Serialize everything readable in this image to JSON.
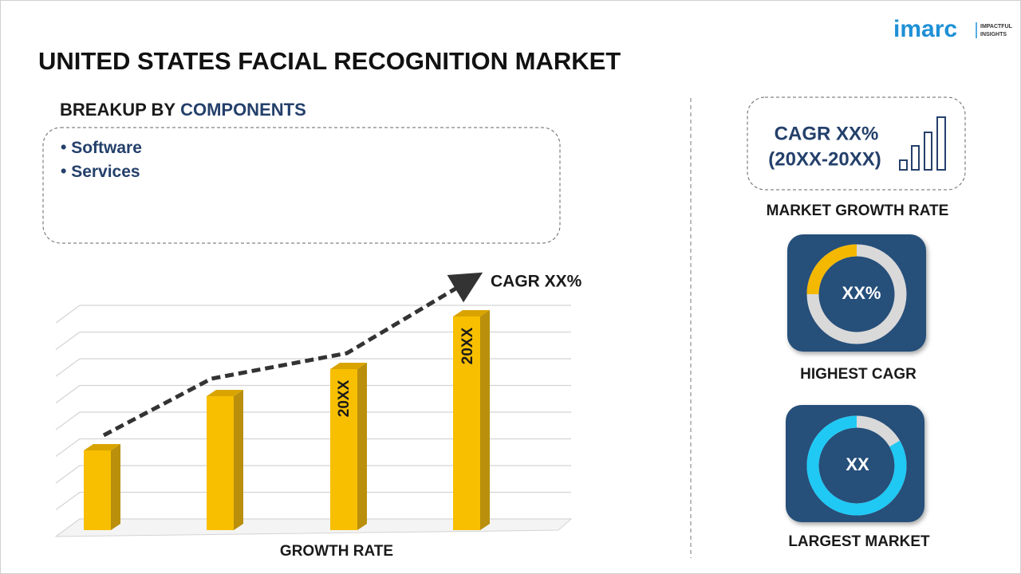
{
  "logo": {
    "name": "imarc",
    "tagline": [
      "IMPACTFUL",
      "INSIGHTS"
    ]
  },
  "title": "UNITED STATES FACIAL RECOGNITION MARKET",
  "breakup": {
    "prefix": "BREAKUP BY",
    "highlight": "COMPONENTS",
    "items": [
      "Software",
      "Services"
    ]
  },
  "growth_chart": {
    "annotation": "CAGR XX%",
    "bar_labels": [
      "20XX",
      "20XX"
    ],
    "axis_label": "GROWTH RATE"
  },
  "cagr_card": {
    "line1": "CAGR XX%",
    "line2": "(20XX-20XX)",
    "caption": "MARKET GROWTH RATE"
  },
  "highest_cagr": {
    "value": "XX%",
    "caption": "HIGHEST CAGR"
  },
  "largest_market": {
    "value": "XX",
    "caption": "LARGEST MARKET"
  }
}
